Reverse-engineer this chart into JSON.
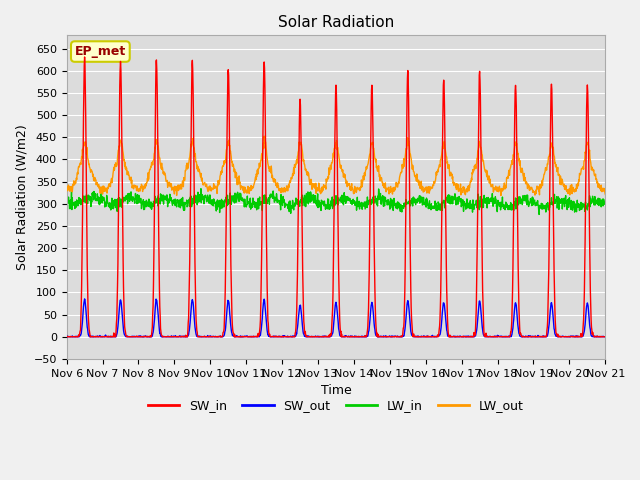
{
  "title": "Solar Radiation",
  "ylabel": "Solar Radiation (W/m2)",
  "xlabel": "Time",
  "ylim": [
    -50,
    680
  ],
  "yticks": [
    -50,
    0,
    50,
    100,
    150,
    200,
    250,
    300,
    350,
    400,
    450,
    500,
    550,
    600,
    650
  ],
  "bg_color": "#dcdcdc",
  "fig_color": "#f0f0f0",
  "grid_color": "white",
  "series_colors": {
    "SW_in": "#ff0000",
    "SW_out": "#0000ff",
    "LW_in": "#00cc00",
    "LW_out": "#ff9900"
  },
  "line_width": 1.0,
  "start_day": 6,
  "end_day": 21,
  "dt_hours": 0.25,
  "annotation_text": "EP_met",
  "annotation_fontsize": 9,
  "annotation_color": "#990000"
}
